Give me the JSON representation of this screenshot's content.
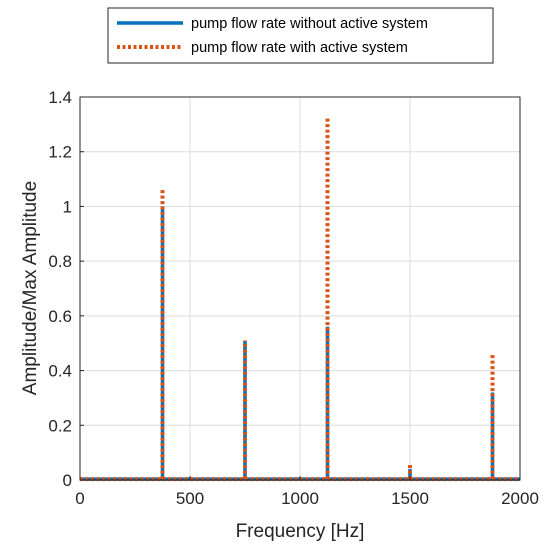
{
  "chart_data": {
    "type": "line",
    "xlabel": "Frequency [Hz]",
    "ylabel": "Amplitude/Max Amplitude",
    "xlim": [
      0,
      2000
    ],
    "ylim": [
      0,
      1.4
    ],
    "x_ticks": [
      "0",
      "500",
      "1000",
      "1500",
      "2000"
    ],
    "y_ticks": [
      "0",
      "0.2",
      "0.4",
      "0.6",
      "0.8",
      "1",
      "1.2",
      "1.4"
    ],
    "grid": true,
    "legend_position": "top-center, outside plot",
    "series": [
      {
        "name": "pump flow rate without active system",
        "color": "#0072BD",
        "style": "solid",
        "baseline": 0.003,
        "peaks": [
          {
            "x": 375,
            "y": 1.0
          },
          {
            "x": 750,
            "y": 0.51
          },
          {
            "x": 1125,
            "y": 0.56
          },
          {
            "x": 1500,
            "y": 0.04
          },
          {
            "x": 1875,
            "y": 0.32
          }
        ]
      },
      {
        "name": "pump flow rate with active system",
        "color": "#D95319",
        "style": "dotted",
        "baseline": 0.003,
        "peaks": [
          {
            "x": 375,
            "y": 1.06
          },
          {
            "x": 750,
            "y": 0.51
          },
          {
            "x": 1125,
            "y": 1.33
          },
          {
            "x": 1500,
            "y": 0.06
          },
          {
            "x": 1875,
            "y": 0.46
          }
        ]
      }
    ]
  }
}
